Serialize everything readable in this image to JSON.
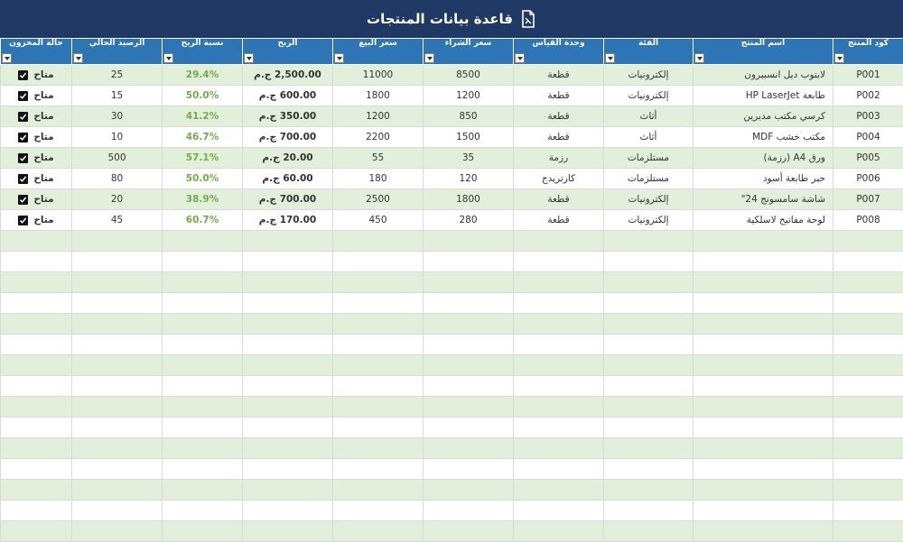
{
  "title": "قاعدة بيانات المنتجات",
  "title_icon": "document-icon",
  "colors": {
    "title_bg": "#1f3864",
    "header_bg": "#2e75b6",
    "band_green": "#e2efda",
    "percent_green": "#70ad47"
  },
  "columns": [
    "كود المنتج",
    "اسم المنتج",
    "الفئة",
    "وحدة القياس",
    "سعر الشراء",
    "سعر البيع",
    "الربح",
    "نسبة الربح",
    "الرصيد الحالي",
    "حالة المخزون"
  ],
  "rows": [
    {
      "code": "P001",
      "name": "لابتوب ديل انسبيرون",
      "category": "إلكترونيات",
      "unit": "قطعة",
      "buy": "8500",
      "sell": "11000",
      "profit": "2,500.00 ج.م",
      "pct": "29.4%",
      "stock": "25",
      "status": "متاح",
      "status_icon": "check-icon"
    },
    {
      "code": "P002",
      "name": "طابعة HP LaserJet",
      "category": "إلكترونيات",
      "unit": "قطعة",
      "buy": "1200",
      "sell": "1800",
      "profit": "600.00 ج.م",
      "pct": "50.0%",
      "stock": "15",
      "status": "متاح",
      "status_icon": "check-icon"
    },
    {
      "code": "P003",
      "name": "كرسي مكتب مديرين",
      "category": "أثاث",
      "unit": "قطعة",
      "buy": "850",
      "sell": "1200",
      "profit": "350.00 ج.م",
      "pct": "41.2%",
      "stock": "30",
      "status": "متاح",
      "status_icon": "check-icon"
    },
    {
      "code": "P004",
      "name": "مكتب خشب MDF",
      "category": "أثاث",
      "unit": "قطعة",
      "buy": "1500",
      "sell": "2200",
      "profit": "700.00 ج.م",
      "pct": "46.7%",
      "stock": "10",
      "status": "متاح",
      "status_icon": "check-icon"
    },
    {
      "code": "P005",
      "name": "ورق A4 (رزمة)",
      "category": "مستلزمات",
      "unit": "رزمة",
      "buy": "35",
      "sell": "55",
      "profit": "20.00 ج.م",
      "pct": "57.1%",
      "stock": "500",
      "status": "متاح",
      "status_icon": "check-icon"
    },
    {
      "code": "P006",
      "name": "حبر طابعة أسود",
      "category": "مستلزمات",
      "unit": "كارتريدج",
      "buy": "120",
      "sell": "180",
      "profit": "60.00 ج.م",
      "pct": "50.0%",
      "stock": "80",
      "status": "متاح",
      "status_icon": "check-icon"
    },
    {
      "code": "P007",
      "name": "شاشة سامسونج 24\"",
      "category": "إلكترونيات",
      "unit": "قطعة",
      "buy": "1800",
      "sell": "2500",
      "profit": "700.00 ج.م",
      "pct": "38.9%",
      "stock": "20",
      "status": "متاح",
      "status_icon": "check-icon"
    },
    {
      "code": "P008",
      "name": "لوحة مفاتيح لاسلكية",
      "category": "إلكترونيات",
      "unit": "قطعة",
      "buy": "280",
      "sell": "450",
      "profit": "170.00 ج.م",
      "pct": "60.7%",
      "stock": "45",
      "status": "متاح",
      "status_icon": "check-icon"
    }
  ]
}
